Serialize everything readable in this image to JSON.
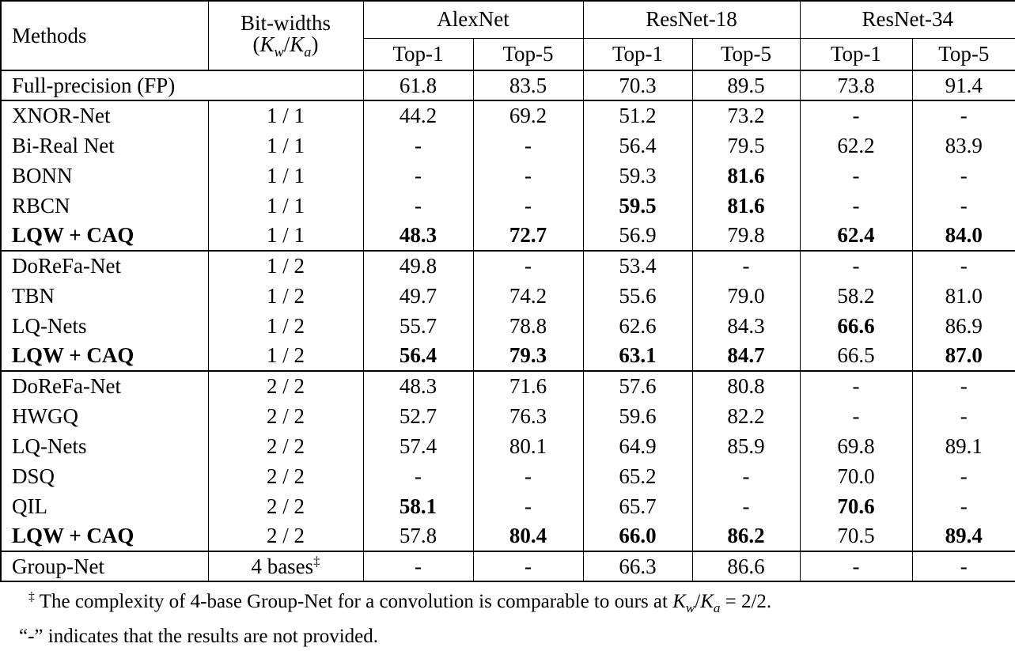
{
  "table": {
    "header": {
      "methods": "Methods",
      "bitwidths_line1": "Bit-widths",
      "math": {
        "open": "(",
        "k1": "K",
        "sub1": "w",
        "slash": "/",
        "k2": "K",
        "sub2": "a",
        "close": ")"
      },
      "groups": [
        "AlexNet",
        "ResNet-18",
        "ResNet-34"
      ],
      "subcols": [
        "Top-1",
        "Top-5"
      ]
    },
    "sections": [
      {
        "rows": [
          {
            "method": "Full-precision (FP)",
            "method_colspan": 2,
            "cells": [
              "61.8",
              "83.5",
              "70.3",
              "89.5",
              "73.8",
              "91.4"
            ],
            "bold_cells": []
          }
        ]
      },
      {
        "rows": [
          {
            "method": "XNOR-Net",
            "bits": "1 / 1",
            "cells": [
              "44.2",
              "69.2",
              "51.2",
              "73.2",
              "-",
              "-"
            ],
            "bold_cells": []
          },
          {
            "method": "Bi-Real Net",
            "bits": "1 / 1",
            "cells": [
              "-",
              "-",
              "56.4",
              "79.5",
              "62.2",
              "83.9"
            ],
            "bold_cells": []
          },
          {
            "method": "BONN",
            "bits": "1 / 1",
            "cells": [
              "-",
              "-",
              "59.3",
              "81.6",
              "-",
              "-"
            ],
            "bold_cells": [
              3
            ]
          },
          {
            "method": "RBCN",
            "bits": "1 / 1",
            "cells": [
              "-",
              "-",
              "59.5",
              "81.6",
              "-",
              "-"
            ],
            "bold_cells": [
              2,
              3
            ]
          },
          {
            "method": "LQW + CAQ",
            "bits": "1 / 1",
            "cells": [
              "48.3",
              "72.7",
              "56.9",
              "79.8",
              "62.4",
              "84.0"
            ],
            "bold_cells": [
              0,
              1,
              4,
              5
            ],
            "bold_method": true
          }
        ]
      },
      {
        "rows": [
          {
            "method": "DoReFa-Net",
            "bits": "1 / 2",
            "cells": [
              "49.8",
              "-",
              "53.4",
              "-",
              "-",
              "-"
            ],
            "bold_cells": []
          },
          {
            "method": "TBN",
            "bits": "1 / 2",
            "cells": [
              "49.7",
              "74.2",
              "55.6",
              "79.0",
              "58.2",
              "81.0"
            ],
            "bold_cells": []
          },
          {
            "method": "LQ-Nets",
            "bits": "1 / 2",
            "cells": [
              "55.7",
              "78.8",
              "62.6",
              "84.3",
              "66.6",
              "86.9"
            ],
            "bold_cells": [
              4
            ]
          },
          {
            "method": "LQW + CAQ",
            "bits": "1 / 2",
            "cells": [
              "56.4",
              "79.3",
              "63.1",
              "84.7",
              "66.5",
              "87.0"
            ],
            "bold_cells": [
              0,
              1,
              2,
              3,
              5
            ],
            "bold_method": true
          }
        ]
      },
      {
        "rows": [
          {
            "method": "DoReFa-Net",
            "bits": "2 / 2",
            "cells": [
              "48.3",
              "71.6",
              "57.6",
              "80.8",
              "-",
              "-"
            ],
            "bold_cells": []
          },
          {
            "method": "HWGQ",
            "bits": "2 / 2",
            "cells": [
              "52.7",
              "76.3",
              "59.6",
              "82.2",
              "-",
              "-"
            ],
            "bold_cells": []
          },
          {
            "method": "LQ-Nets",
            "bits": "2 / 2",
            "cells": [
              "57.4",
              "80.1",
              "64.9",
              "85.9",
              "69.8",
              "89.1"
            ],
            "bold_cells": []
          },
          {
            "method": "DSQ",
            "bits": "2 / 2",
            "cells": [
              "-",
              "-",
              "65.2",
              "-",
              "70.0",
              "-"
            ],
            "bold_cells": []
          },
          {
            "method": "QIL",
            "bits": "2 / 2",
            "cells": [
              "58.1",
              "-",
              "65.7",
              "-",
              "70.6",
              "-"
            ],
            "bold_cells": [
              0,
              4
            ]
          },
          {
            "method": "LQW + CAQ",
            "bits": "2 / 2",
            "cells": [
              "57.8",
              "80.4",
              "66.0",
              "86.2",
              "70.5",
              "89.4"
            ],
            "bold_cells": [
              1,
              2,
              3,
              5
            ],
            "bold_method": true
          }
        ]
      },
      {
        "rows": [
          {
            "method": "Group-Net",
            "bits": "4 bases",
            "bits_sup": "‡",
            "cells": [
              "-",
              "-",
              "66.3",
              "86.6",
              "-",
              "-"
            ],
            "bold_cells": []
          }
        ]
      }
    ]
  },
  "footnote": {
    "dagger": "‡",
    "line1_pre": "The complexity of 4-base Group-Net for a convolution is comparable to ours at ",
    "math": {
      "k1": "K",
      "sub1": "w",
      "slash": "/",
      "k2": "K",
      "sub2": "a"
    },
    "line1_post": " = 2/2.",
    "line2": "“-” indicates that the results are not provided."
  }
}
